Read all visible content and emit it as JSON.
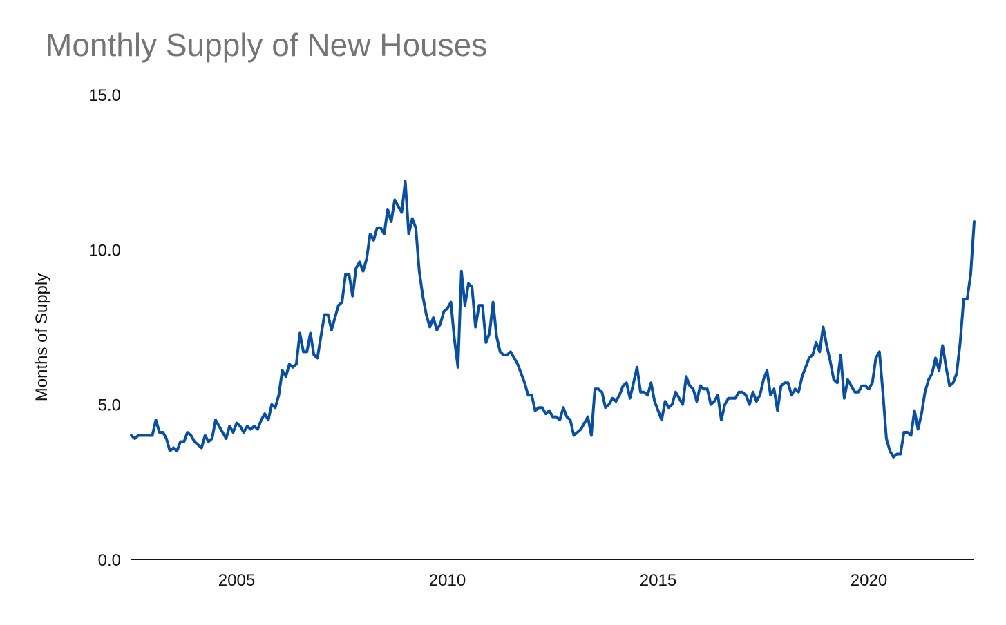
{
  "chart_data": {
    "type": "line",
    "title": "Monthly Supply of New Houses",
    "xlabel": "",
    "ylabel": "Months of Supply",
    "xlim": [
      2002.5,
      2022.5
    ],
    "ylim": [
      0,
      15
    ],
    "x_ticks": [
      2005,
      2010,
      2015,
      2020
    ],
    "x_tick_labels": [
      "2005",
      "2010",
      "2015",
      "2020"
    ],
    "y_ticks": [
      0,
      5,
      10,
      15
    ],
    "y_tick_labels": [
      "0.0",
      "5.0",
      "10.0",
      "15.0"
    ],
    "grid": false,
    "legend": "none",
    "line_color": "#0a4f9e",
    "series": [
      {
        "x_start": "2002-07",
        "frequency": "monthly",
        "values": [
          4.0,
          3.9,
          4.0,
          4.0,
          4.0,
          4.0,
          4.0,
          4.5,
          4.1,
          4.1,
          3.9,
          3.5,
          3.6,
          3.5,
          3.8,
          3.8,
          4.1,
          4.0,
          3.8,
          3.7,
          3.6,
          4.0,
          3.8,
          3.9,
          4.5,
          4.3,
          4.1,
          3.9,
          4.3,
          4.1,
          4.4,
          4.3,
          4.1,
          4.3,
          4.2,
          4.3,
          4.2,
          4.5,
          4.7,
          4.5,
          5.0,
          4.9,
          5.3,
          6.1,
          5.9,
          6.3,
          6.2,
          6.3,
          7.3,
          6.7,
          6.7,
          7.3,
          6.6,
          6.5,
          7.2,
          7.9,
          7.9,
          7.4,
          7.8,
          8.2,
          8.3,
          9.2,
          9.2,
          8.5,
          9.4,
          9.6,
          9.3,
          9.7,
          10.5,
          10.3,
          10.7,
          10.7,
          10.5,
          11.3,
          10.9,
          11.6,
          11.4,
          11.2,
          12.2,
          10.5,
          11.0,
          10.7,
          9.3,
          8.5,
          7.9,
          7.5,
          7.8,
          7.4,
          7.6,
          8.0,
          8.1,
          8.3,
          7.1,
          6.2,
          9.3,
          8.2,
          8.9,
          8.8,
          7.5,
          8.2,
          8.2,
          7.0,
          7.3,
          8.3,
          7.2,
          6.7,
          6.6,
          6.6,
          6.7,
          6.5,
          6.3,
          6.0,
          5.7,
          5.3,
          5.3,
          4.8,
          4.9,
          4.9,
          4.7,
          4.8,
          4.6,
          4.6,
          4.5,
          4.9,
          4.6,
          4.5,
          4.0,
          4.1,
          4.2,
          4.4,
          4.6,
          4.0,
          5.5,
          5.5,
          5.4,
          4.9,
          5.0,
          5.2,
          5.1,
          5.3,
          5.6,
          5.7,
          5.2,
          5.7,
          6.2,
          5.4,
          5.4,
          5.3,
          5.7,
          5.1,
          4.8,
          4.5,
          5.1,
          4.9,
          5.0,
          5.4,
          5.2,
          5.0,
          5.9,
          5.6,
          5.5,
          5.1,
          5.6,
          5.5,
          5.5,
          5.0,
          5.1,
          5.3,
          4.5,
          5.0,
          5.2,
          5.2,
          5.2,
          5.4,
          5.4,
          5.3,
          5.0,
          5.4,
          5.1,
          5.3,
          5.8,
          6.1,
          5.3,
          5.5,
          4.8,
          5.6,
          5.7,
          5.7,
          5.3,
          5.5,
          5.4,
          5.9,
          6.2,
          6.5,
          6.6,
          7.0,
          6.7,
          7.5,
          6.9,
          6.4,
          5.8,
          5.7,
          6.6,
          5.2,
          5.8,
          5.6,
          5.4,
          5.4,
          5.6,
          5.6,
          5.5,
          5.7,
          6.5,
          6.7,
          5.4,
          3.9,
          3.5,
          3.3,
          3.4,
          3.4,
          4.1,
          4.1,
          4.0,
          4.8,
          4.2,
          4.7,
          5.4,
          5.8,
          6.0,
          6.5,
          6.1,
          6.9,
          6.2,
          5.6,
          5.7,
          6.0,
          7.0,
          8.4,
          8.4,
          9.2,
          10.9
        ]
      }
    ]
  }
}
